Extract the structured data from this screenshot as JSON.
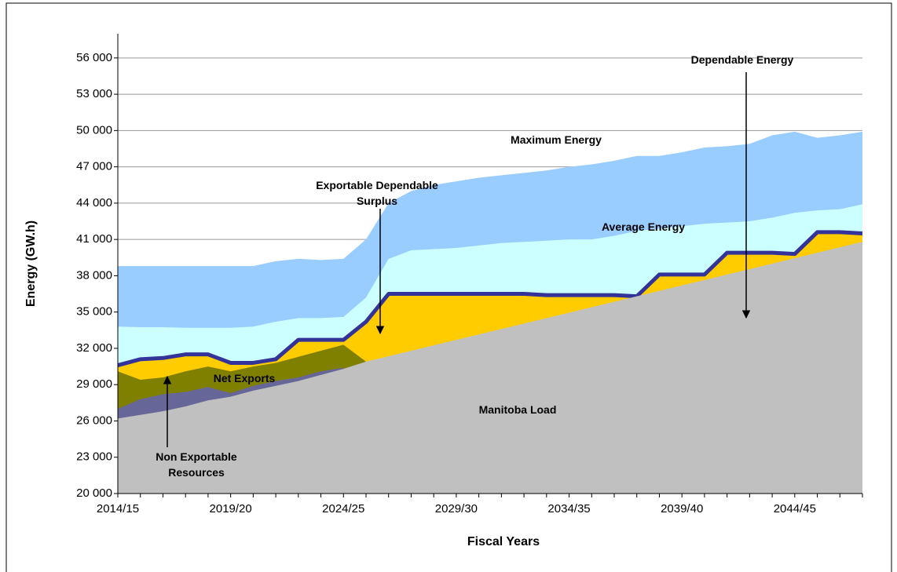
{
  "chart_data": {
    "type": "area",
    "xlabel": "Fiscal Years",
    "ylabel": "Energy (GW.h)",
    "categories": [
      "2014/15",
      null,
      null,
      null,
      null,
      "2019/20",
      null,
      null,
      null,
      null,
      "2024/25",
      null,
      null,
      null,
      null,
      "2029/30",
      null,
      null,
      null,
      null,
      "2034/35",
      null,
      null,
      null,
      null,
      "2039/40",
      null,
      null,
      null,
      null,
      "2044/45",
      null,
      null,
      null
    ],
    "ylim": [
      20000,
      58000
    ],
    "yticks": [
      {
        "value": 20000,
        "label": "20 000"
      },
      {
        "value": 23000,
        "label": "23 000"
      },
      {
        "value": 26000,
        "label": "26 000"
      },
      {
        "value": 29000,
        "label": "29 000"
      },
      {
        "value": 32000,
        "label": "32 000"
      },
      {
        "value": 35000,
        "label": "35 000"
      },
      {
        "value": 38000,
        "label": "38 000"
      },
      {
        "value": 41000,
        "label": "41 000"
      },
      {
        "value": 44000,
        "label": "44 000"
      },
      {
        "value": 47000,
        "label": "47 000"
      },
      {
        "value": 50000,
        "label": "50 000"
      },
      {
        "value": 53000,
        "label": "53 000"
      },
      {
        "value": 56000,
        "label": "56 000"
      }
    ],
    "grid": true,
    "series": [
      {
        "name": "Maximum Energy",
        "color": "#99ccff",
        "values": [
          38800,
          38800,
          38800,
          38800,
          38800,
          38800,
          38800,
          39200,
          39400,
          39300,
          39400,
          41000,
          44000,
          45000,
          45500,
          45800,
          46100,
          46300,
          46500,
          46700,
          47000,
          47200,
          47500,
          47900,
          47900,
          48200,
          48600,
          48700,
          48900,
          49600,
          49900,
          49400,
          49600,
          49900
        ]
      },
      {
        "name": "Average Energy",
        "color": "#ccffff",
        "values": [
          33800,
          33750,
          33750,
          33700,
          33700,
          33700,
          33800,
          34200,
          34500,
          34500,
          34600,
          36200,
          39400,
          40100,
          40200,
          40300,
          40500,
          40700,
          40800,
          40900,
          41000,
          41000,
          41300,
          41700,
          41900,
          42100,
          42300,
          42400,
          42500,
          42800,
          43200,
          43400,
          43500,
          43900
        ]
      },
      {
        "name": "Dependable Energy",
        "color": "#ffcc00",
        "line_color": "#333399",
        "values": [
          30600,
          31100,
          31200,
          31500,
          31500,
          30800,
          30800,
          31100,
          32700,
          32700,
          32700,
          34200,
          36500,
          36500,
          36500,
          36500,
          36500,
          36500,
          36500,
          36400,
          36400,
          36400,
          36400,
          36300,
          38100,
          38100,
          38100,
          39900,
          39900,
          39900,
          39800,
          41600,
          41600,
          41500
        ]
      },
      {
        "name": "Net Exports",
        "color": "#808000",
        "values": [
          30100,
          29400,
          29600,
          30100,
          30500,
          30100,
          30500,
          30800,
          31300,
          31800,
          32300,
          30900,
          null,
          null,
          null,
          null,
          null,
          null,
          null,
          null,
          null,
          null,
          null,
          null,
          null,
          null,
          null,
          null,
          null,
          null,
          null,
          null,
          null,
          null
        ]
      },
      {
        "name": "Non Exportable Resources",
        "color": "#666699",
        "values": [
          27000,
          27800,
          28200,
          28400,
          28800,
          28300,
          28900,
          29300,
          29600,
          30100,
          30400,
          null,
          null,
          null,
          null,
          null,
          null,
          null,
          null,
          null,
          null,
          null,
          null,
          null,
          null,
          null,
          null,
          null,
          null,
          null,
          null,
          null,
          null,
          null
        ]
      },
      {
        "name": "Manitoba Load",
        "color": "#c0c0c0",
        "values": [
          26200,
          26500,
          26800,
          27200,
          27700,
          28000,
          28500,
          28900,
          29300,
          29800,
          30300,
          30900,
          31350,
          31800,
          32250,
          32700,
          33150,
          33600,
          34050,
          34500,
          34950,
          35400,
          35850,
          36300,
          36750,
          37200,
          37650,
          38100,
          38550,
          39000,
          39450,
          39900,
          40350,
          40800
        ]
      }
    ],
    "annotations": [
      "Exportable Dependable Surplus"
    ]
  }
}
